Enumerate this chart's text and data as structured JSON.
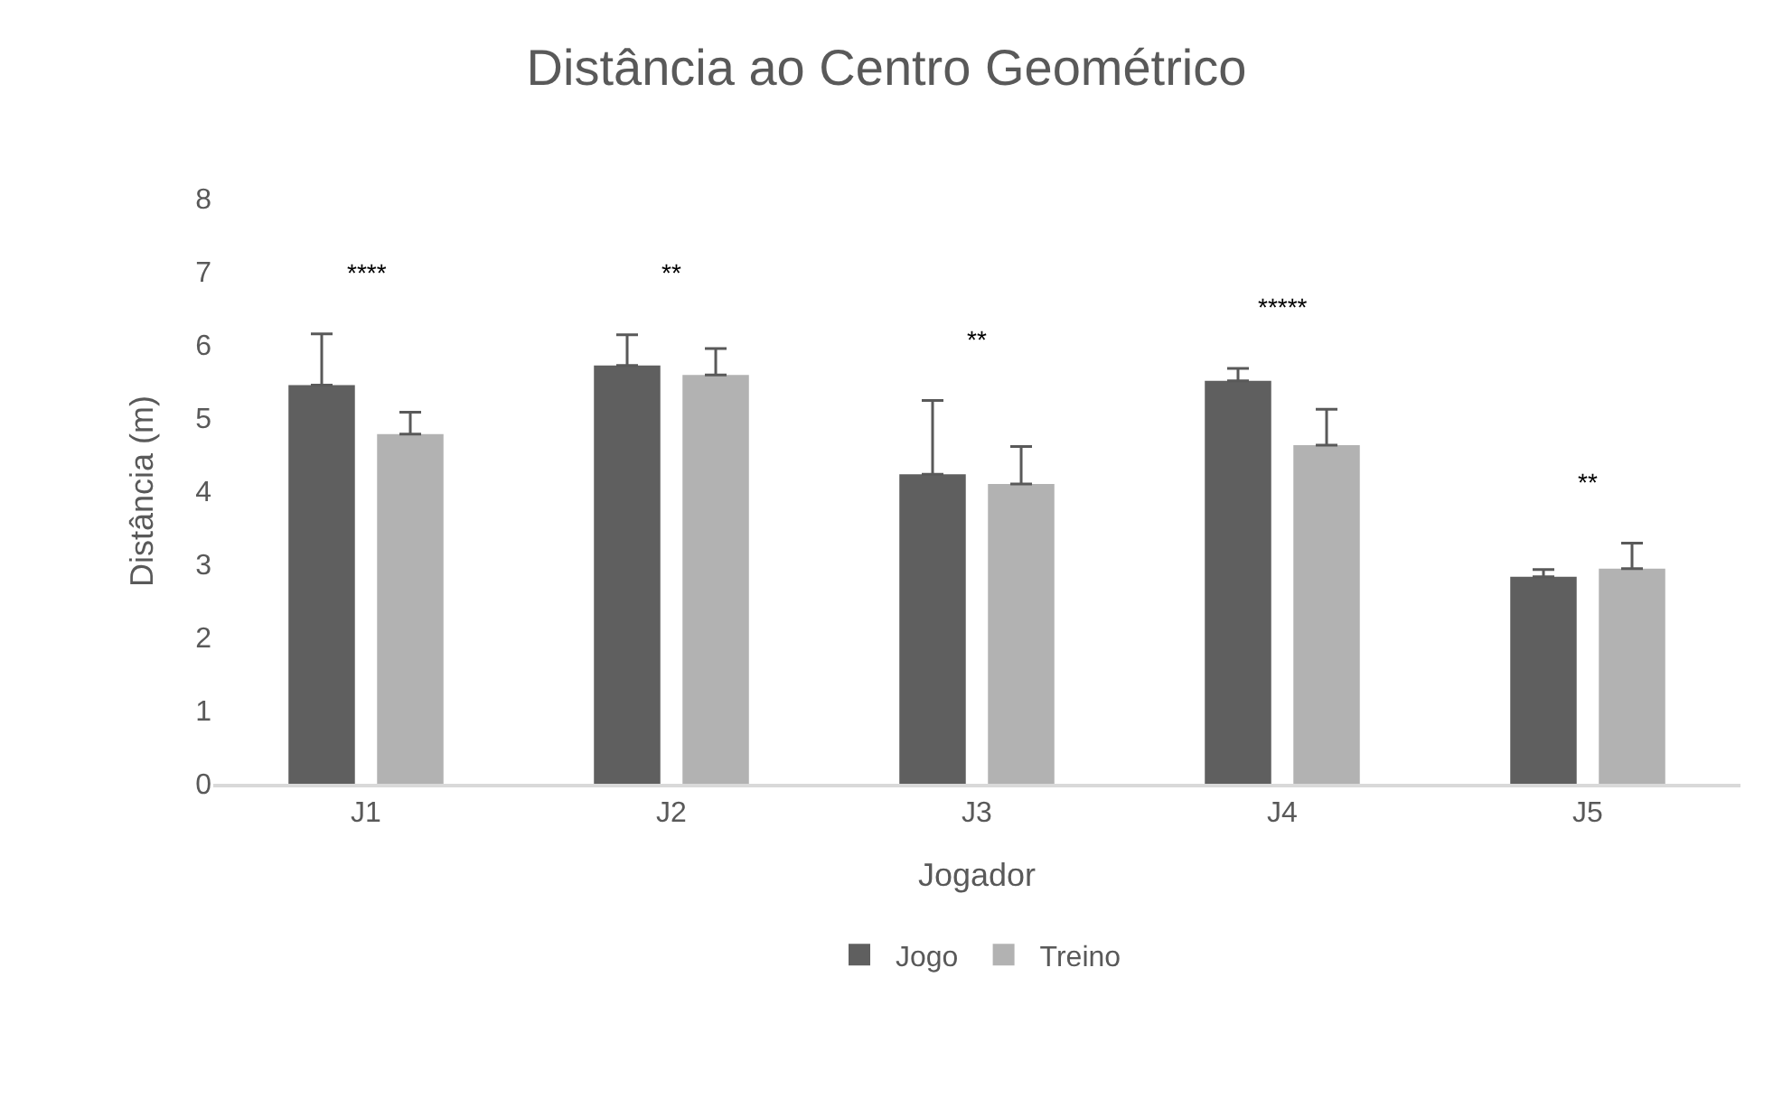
{
  "chart_data": {
    "type": "bar",
    "title": "Distância ao Centro Geométrico",
    "xlabel": "Jogador",
    "ylabel": "Distância (m)",
    "categories": [
      "J1",
      "J2",
      "J3",
      "J4",
      "J5"
    ],
    "series": [
      {
        "name": "Jogo",
        "color": "#5f5f5f",
        "values": [
          5.45,
          5.72,
          4.23,
          5.51,
          2.83
        ],
        "errors": [
          [
            5.45,
            6.15
          ],
          [
            5.72,
            6.14
          ],
          [
            4.23,
            5.24
          ],
          [
            5.51,
            5.68
          ],
          [
            2.83,
            2.93
          ]
        ]
      },
      {
        "name": "Treino",
        "color": "#b2b2b2",
        "values": [
          4.78,
          5.59,
          4.1,
          4.63,
          2.94
        ],
        "errors": [
          [
            4.78,
            5.08
          ],
          [
            5.59,
            5.95
          ],
          [
            4.1,
            4.61
          ],
          [
            4.63,
            5.12
          ],
          [
            2.94,
            3.29
          ]
        ]
      }
    ],
    "ylim": [
      0,
      8
    ],
    "yticks": [
      0,
      1,
      2,
      3,
      4,
      5,
      6,
      7,
      8
    ],
    "grid": false,
    "legend": "bottom",
    "annotations": [
      "****",
      "**",
      "**",
      "*****",
      "**"
    ]
  }
}
